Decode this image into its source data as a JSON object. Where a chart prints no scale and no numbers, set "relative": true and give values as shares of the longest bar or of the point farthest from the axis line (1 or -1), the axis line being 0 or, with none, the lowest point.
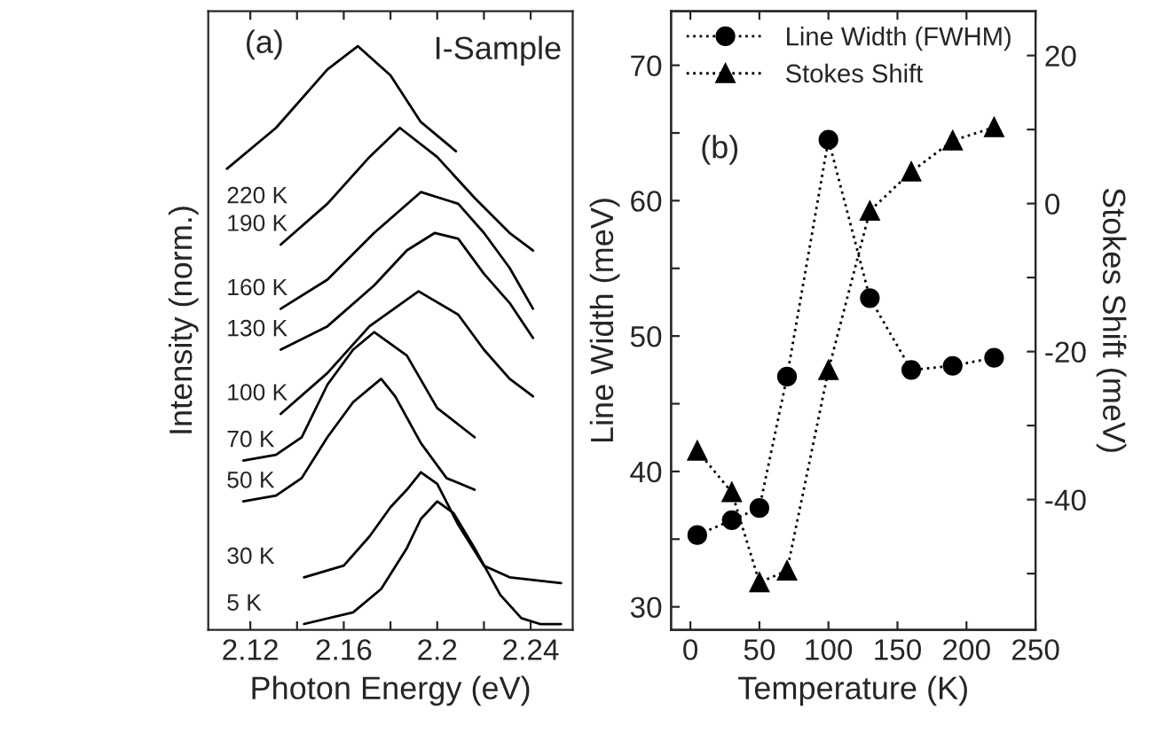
{
  "chart_data": [
    {
      "type": "line",
      "relative": true,
      "xlabel": "Photon Energy (eV)",
      "ylabel": "Intensity (norm.)",
      "annotations": [
        "(a)",
        "I-Sample"
      ],
      "tick_labels": "x",
      "xlim": [
        2.102,
        2.258
      ],
      "xticks": [
        2.12,
        {
          "value": 2.14,
          "label": null
        },
        2.16,
        {
          "value": 2.18,
          "label": null
        },
        2.2,
        {
          "value": 2.22,
          "label": null
        },
        2.24
      ],
      "color": "#000000",
      "legend": false,
      "series": [
        {
          "name": "5 K",
          "x": [
            2.143,
            2.164,
            2.176,
            2.187,
            2.193,
            2.2,
            2.207,
            2.216,
            2.227,
            2.236,
            2.244,
            2.253
          ],
          "values": [
            0.01,
            0.03,
            0.07,
            0.14,
            0.19,
            0.22,
            0.2,
            0.14,
            0.06,
            0.02,
            0.01,
            0.01
          ]
        },
        {
          "name": "30 K",
          "x": [
            2.143,
            2.16,
            2.171,
            2.18,
            2.187,
            2.193,
            2.2,
            2.209,
            2.22,
            2.231,
            2.253
          ],
          "values": [
            0.09,
            0.11,
            0.16,
            0.21,
            0.24,
            0.27,
            0.25,
            0.18,
            0.11,
            0.09,
            0.08
          ]
        },
        {
          "name": "50 K",
          "x": [
            2.117,
            2.131,
            2.142,
            2.153,
            2.164,
            2.176,
            2.182,
            2.193,
            2.204,
            2.216
          ],
          "values": [
            0.22,
            0.23,
            0.26,
            0.33,
            0.39,
            0.43,
            0.4,
            0.32,
            0.26,
            0.24
          ]
        },
        {
          "name": "70 K",
          "x": [
            2.117,
            2.131,
            2.142,
            2.153,
            2.164,
            2.173,
            2.187,
            2.2,
            2.216
          ],
          "values": [
            0.29,
            0.3,
            0.33,
            0.42,
            0.48,
            0.51,
            0.47,
            0.38,
            0.33
          ]
        },
        {
          "name": "100 K",
          "x": [
            2.133,
            2.153,
            2.171,
            2.192,
            2.209,
            2.22,
            2.231,
            2.241
          ],
          "values": [
            0.37,
            0.44,
            0.52,
            0.58,
            0.54,
            0.48,
            0.43,
            0.4
          ]
        },
        {
          "name": "130 K",
          "x": [
            2.133,
            2.153,
            2.173,
            2.187,
            2.199,
            2.209,
            2.22,
            2.231,
            2.241
          ],
          "values": [
            0.48,
            0.52,
            0.59,
            0.65,
            0.68,
            0.67,
            0.61,
            0.56,
            0.5
          ]
        },
        {
          "name": "160 K",
          "x": [
            2.133,
            2.153,
            2.173,
            2.193,
            2.209,
            2.22,
            2.231,
            2.241
          ],
          "values": [
            0.55,
            0.6,
            0.68,
            0.75,
            0.73,
            0.68,
            0.62,
            0.55
          ]
        },
        {
          "name": "190 K",
          "x": [
            2.133,
            2.153,
            2.171,
            2.184,
            2.2,
            2.216,
            2.231,
            2.241
          ],
          "values": [
            0.66,
            0.73,
            0.81,
            0.86,
            0.81,
            0.74,
            0.68,
            0.65
          ]
        },
        {
          "name": "220 K",
          "x": [
            2.11,
            2.131,
            2.153,
            2.166,
            2.18,
            2.193,
            2.208
          ],
          "values": [
            0.79,
            0.86,
            0.96,
            1.0,
            0.95,
            0.87,
            0.82
          ]
        }
      ]
    },
    {
      "type": "line",
      "xlabel": "Temperature (K)",
      "ylabel": "Line Width (meV)",
      "y2label": "Stokes Shift (meV)",
      "annotations": [
        "(b)"
      ],
      "legend": "top left",
      "line_style": "dotted",
      "x": [
        5,
        30,
        50,
        70,
        100,
        130,
        160,
        190,
        220
      ],
      "xlim": [
        -14,
        250
      ],
      "xticks": [
        0,
        50,
        100,
        150,
        200,
        250
      ],
      "ylim": [
        28.3,
        74
      ],
      "yticks": [
        30,
        {
          "value": 35,
          "label": null
        },
        40,
        {
          "value": 45,
          "label": null
        },
        50,
        {
          "value": 55,
          "label": null
        },
        60,
        {
          "value": 65,
          "label": null
        },
        70
      ],
      "y2lim": [
        -57.6,
        26
      ],
      "y2ticks": [
        {
          "value": -50,
          "label": null
        },
        -40,
        {
          "value": -30,
          "label": null
        },
        -20,
        {
          "value": -10,
          "label": null
        },
        0,
        {
          "value": 10,
          "label": null
        },
        20
      ],
      "series": [
        {
          "name": "Line Width (FWHM)",
          "color": "#000000",
          "marker": "circle",
          "values": [
            35.3,
            36.4,
            37.3,
            47,
            64.5,
            52.8,
            47.5,
            47.8,
            48.4
          ]
        },
        {
          "name": "Stokes Shift",
          "color": "#000000",
          "marker": "triangle",
          "axis": "y2",
          "values": [
            -33.4,
            -39,
            -51.2,
            -49.6,
            -22.5,
            -1,
            4.3,
            8.5,
            10.3
          ]
        }
      ]
    }
  ]
}
